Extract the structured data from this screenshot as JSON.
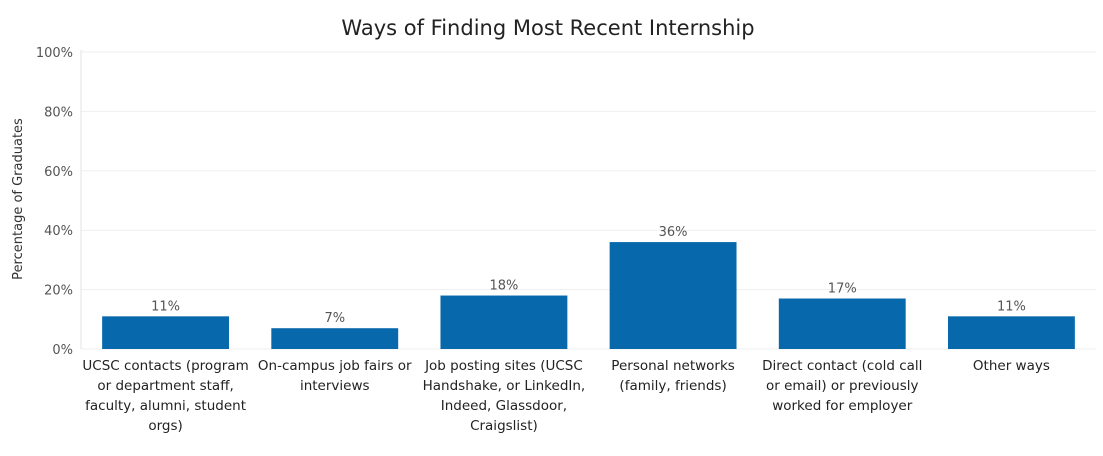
{
  "chart_data": {
    "type": "bar",
    "title": "Ways of Finding Most Recent Internship",
    "xlabel": "",
    "ylabel": "Percentage of Graduates",
    "ylim": [
      0,
      100
    ],
    "yticks": [
      "0%",
      "20%",
      "40%",
      "60%",
      "80%",
      "100%"
    ],
    "categories": [
      "UCSC contacts (program or department staff, faculty, alumni, student orgs)",
      "On-campus job fairs or interviews",
      "Job posting sites (UCSC Handshake, or LinkedIn, Indeed, Glassdoor, Craigslist)",
      "Personal networks (family, friends)",
      "Direct contact (cold call or email) or previously worked for employer",
      "Other ways"
    ],
    "category_lines": [
      [
        "UCSC contacts (program",
        "or department staff,",
        "faculty, alumni, student",
        "orgs)"
      ],
      [
        "On-campus job fairs or",
        "interviews"
      ],
      [
        "Job posting sites (UCSC",
        "Handshake, or LinkedIn,",
        "Indeed, Glassdoor,",
        "Craigslist)"
      ],
      [
        "Personal networks",
        "(family, friends)"
      ],
      [
        "Direct contact (cold call",
        "or email) or previously",
        "worked for employer"
      ],
      [
        "Other ways"
      ]
    ],
    "values": [
      11,
      7,
      18,
      36,
      17,
      11
    ],
    "data_labels": [
      "11%",
      "7%",
      "18%",
      "36%",
      "17%",
      "11%"
    ],
    "bar_color": "#0868ac",
    "grid": true,
    "legend": "none"
  }
}
